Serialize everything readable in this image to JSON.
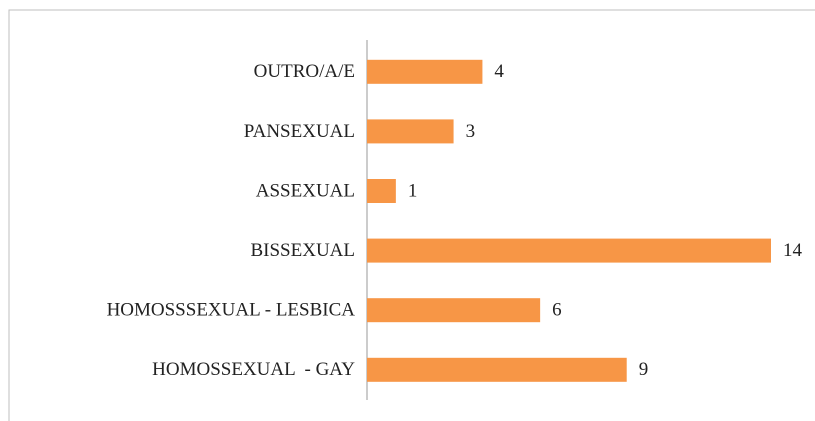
{
  "chart_data": {
    "type": "bar",
    "orientation": "horizontal",
    "categories": [
      "OUTRO/A/E",
      "PANSEXUAL",
      "ASSEXUAL",
      "BISSEXUAL",
      "HOMOSSSEXUAL - LESBICA",
      "HOMOSSEXUAL  - GAY"
    ],
    "values": [
      4,
      3,
      1,
      14,
      6,
      9
    ],
    "color": "#f79646"
  }
}
